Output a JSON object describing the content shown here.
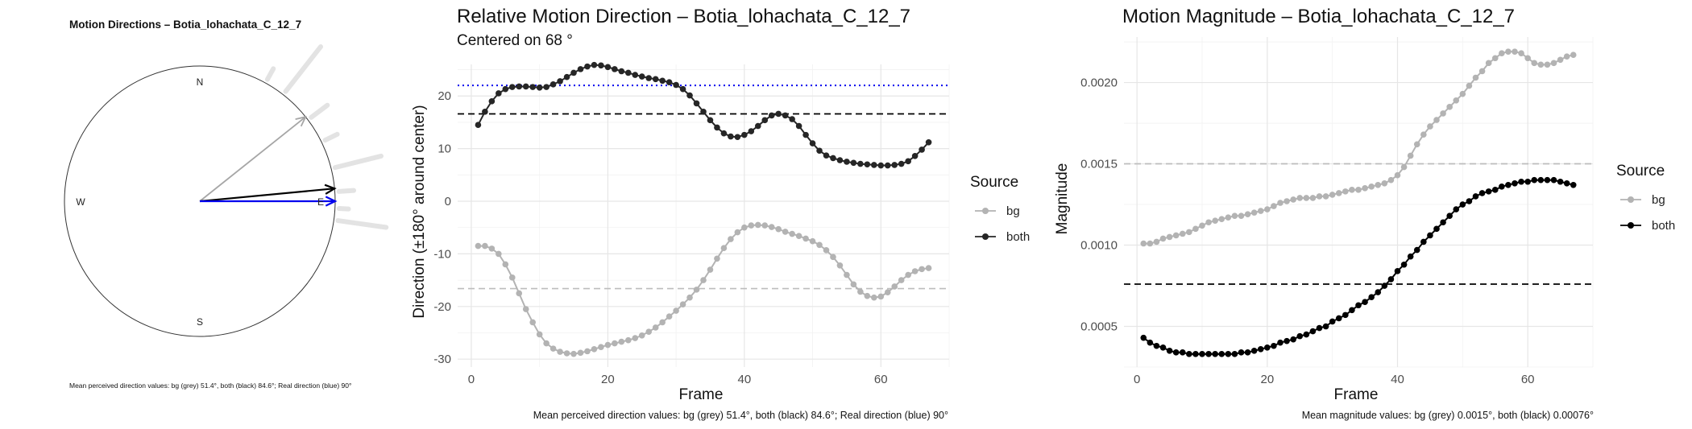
{
  "chart_data": [
    {
      "type": "compass",
      "title": "Motion Directions – Botia_lohachata_C_12_7",
      "directions": {
        "n": "N",
        "s": "S",
        "e": "E",
        "w": "W"
      },
      "caption": "Mean perceived direction values: bg (grey) 51.4°, both (black) 84.6°; Real direction (blue) 90°",
      "arrows": [
        {
          "name": "bg",
          "angle_deg": 51.4,
          "length": 1.0,
          "color": "#a6a6a6"
        },
        {
          "name": "both",
          "angle_deg": 84.6,
          "length": 1.0,
          "color": "#000000"
        },
        {
          "name": "real",
          "angle_deg": 90,
          "length": 1.0,
          "color": "#0000ee"
        }
      ],
      "rays": [
        {
          "angle_deg": 29,
          "r0": 1.03,
          "r1": 1.12
        },
        {
          "angle_deg": 38,
          "r0": 1.03,
          "r1": 1.45
        },
        {
          "angle_deg": 53,
          "r0": 1.03,
          "r1": 1.18
        },
        {
          "angle_deg": 64,
          "r0": 1.03,
          "r1": 1.13
        },
        {
          "angle_deg": 76,
          "r0": 1.03,
          "r1": 1.38
        },
        {
          "angle_deg": 86,
          "r0": 1.03,
          "r1": 1.14
        },
        {
          "angle_deg": 93,
          "r0": 1.03,
          "r1": 1.1
        },
        {
          "angle_deg": 98,
          "r0": 1.03,
          "r1": 1.39
        }
      ]
    },
    {
      "type": "line",
      "title": "Relative Motion Direction – Botia_lohachata_C_12_7",
      "subtitle": "Centered on  68 °",
      "xlabel": "Frame",
      "ylabel": "Direction (±180° around center)",
      "xlim": [
        -2,
        70
      ],
      "ylim": [
        -31.5,
        26
      ],
      "xticks": [
        0,
        20,
        40,
        60
      ],
      "yticks": [
        -30,
        -20,
        -10,
        0,
        10,
        20
      ],
      "legend_title": "Source",
      "legend_position": "right",
      "caption": "Mean perceived direction values: bg (grey) 51.4°, both (black) 84.6°; Real direction (blue) 90°",
      "hlines": [
        {
          "y": 22,
          "color": "#0000ee",
          "style": "dotted"
        },
        {
          "y": 16.6,
          "color": "#000000",
          "style": "dashed"
        },
        {
          "y": -16.6,
          "color": "#bdbdbd",
          "style": "dashed"
        }
      ],
      "series": [
        {
          "name": "bg",
          "color": "#b3b3b3",
          "x": [
            1,
            2,
            3,
            4,
            5,
            6,
            7,
            8,
            9,
            10,
            11,
            12,
            13,
            14,
            15,
            16,
            17,
            18,
            19,
            20,
            21,
            22,
            23,
            24,
            25,
            26,
            27,
            28,
            29,
            30,
            31,
            32,
            33,
            34,
            35,
            36,
            37,
            38,
            39,
            40,
            41,
            42,
            43,
            44,
            45,
            46,
            47,
            48,
            49,
            50,
            51,
            52,
            53,
            54,
            55,
            56,
            57,
            58,
            59,
            60,
            61,
            62,
            63,
            64,
            65,
            66,
            67
          ],
          "y": [
            -8.5,
            -8.5,
            -9.0,
            -10.0,
            -12.0,
            -14.5,
            -17.5,
            -20.5,
            -23.0,
            -25.3,
            -27.0,
            -28.0,
            -28.6,
            -28.9,
            -29.0,
            -28.8,
            -28.5,
            -28.1,
            -27.7,
            -27.3,
            -27.0,
            -26.7,
            -26.4,
            -26.0,
            -25.5,
            -24.8,
            -24.0,
            -23.0,
            -21.9,
            -20.8,
            -19.6,
            -18.3,
            -16.8,
            -15.0,
            -13.0,
            -10.9,
            -8.9,
            -7.2,
            -5.9,
            -5.0,
            -4.6,
            -4.5,
            -4.6,
            -4.9,
            -5.3,
            -5.8,
            -6.2,
            -6.6,
            -7.1,
            -7.6,
            -8.3,
            -9.3,
            -10.6,
            -12.2,
            -14.0,
            -15.8,
            -17.2,
            -18.0,
            -18.3,
            -18.1,
            -17.3,
            -16.2,
            -15.0,
            -14.0,
            -13.3,
            -12.9,
            -12.7
          ]
        },
        {
          "name": "both",
          "color": "#262626",
          "x": [
            1,
            2,
            3,
            4,
            5,
            6,
            7,
            8,
            9,
            10,
            11,
            12,
            13,
            14,
            15,
            16,
            17,
            18,
            19,
            20,
            21,
            22,
            23,
            24,
            25,
            26,
            27,
            28,
            29,
            30,
            31,
            32,
            33,
            34,
            35,
            36,
            37,
            38,
            39,
            40,
            41,
            42,
            43,
            44,
            45,
            46,
            47,
            48,
            49,
            50,
            51,
            52,
            53,
            54,
            55,
            56,
            57,
            58,
            59,
            60,
            61,
            62,
            63,
            64,
            65,
            66,
            67
          ],
          "y": [
            14.5,
            17.0,
            19.0,
            20.5,
            21.3,
            21.7,
            21.8,
            21.8,
            21.7,
            21.6,
            21.7,
            22.2,
            22.8,
            23.6,
            24.4,
            25.1,
            25.6,
            25.9,
            25.8,
            25.5,
            25.1,
            24.7,
            24.4,
            24.0,
            23.7,
            23.4,
            23.2,
            22.9,
            22.6,
            22.1,
            21.3,
            20.1,
            18.6,
            17.0,
            15.4,
            14.0,
            12.9,
            12.3,
            12.2,
            12.6,
            13.3,
            14.3,
            15.4,
            16.3,
            16.6,
            16.3,
            15.6,
            14.3,
            12.6,
            11.0,
            9.6,
            8.7,
            8.2,
            7.8,
            7.5,
            7.3,
            7.1,
            7.0,
            6.9,
            6.8,
            6.8,
            6.9,
            7.1,
            7.6,
            8.6,
            9.8,
            11.2
          ]
        }
      ]
    },
    {
      "type": "line",
      "title": "Motion Magnitude – Botia_lohachata_C_12_7",
      "xlabel": "Frame",
      "ylabel": "Magnitude",
      "xlim": [
        -2,
        70
      ],
      "ylim": [
        0.00025,
        0.00228
      ],
      "xticks": [
        0,
        20,
        40,
        60
      ],
      "yticks": [
        0.0005,
        0.001,
        0.0015,
        0.002
      ],
      "ytick_labels": [
        "0.0005",
        "0.0010",
        "0.0015",
        "0.0020"
      ],
      "legend_title": "Source",
      "legend_position": "right",
      "caption": "Mean magnitude values: bg (grey) 0.0015°, both (black) 0.00076°",
      "hlines": [
        {
          "y": 0.0015,
          "color": "#bdbdbd",
          "style": "dashed"
        },
        {
          "y": 0.00076,
          "color": "#000000",
          "style": "dashed"
        }
      ],
      "series": [
        {
          "name": "bg",
          "color": "#b3b3b3",
          "x": [
            1,
            2,
            3,
            4,
            5,
            6,
            7,
            8,
            9,
            10,
            11,
            12,
            13,
            14,
            15,
            16,
            17,
            18,
            19,
            20,
            21,
            22,
            23,
            24,
            25,
            26,
            27,
            28,
            29,
            30,
            31,
            32,
            33,
            34,
            35,
            36,
            37,
            38,
            39,
            40,
            41,
            42,
            43,
            44,
            45,
            46,
            47,
            48,
            49,
            50,
            51,
            52,
            53,
            54,
            55,
            56,
            57,
            58,
            59,
            60,
            61,
            62,
            63,
            64,
            65,
            66,
            67
          ],
          "y": [
            0.00101,
            0.00101,
            0.00102,
            0.00104,
            0.00105,
            0.00106,
            0.00107,
            0.00108,
            0.0011,
            0.00112,
            0.00114,
            0.00115,
            0.00116,
            0.00117,
            0.00118,
            0.00118,
            0.00119,
            0.0012,
            0.00121,
            0.00122,
            0.00124,
            0.00126,
            0.00127,
            0.00128,
            0.00129,
            0.00129,
            0.00129,
            0.0013,
            0.0013,
            0.00131,
            0.00132,
            0.00133,
            0.00134,
            0.00134,
            0.00135,
            0.00136,
            0.00137,
            0.00138,
            0.0014,
            0.00143,
            0.00148,
            0.00155,
            0.00162,
            0.00168,
            0.00173,
            0.00177,
            0.00181,
            0.00185,
            0.00189,
            0.00193,
            0.00198,
            0.00203,
            0.00207,
            0.00212,
            0.00215,
            0.00218,
            0.00219,
            0.00219,
            0.00218,
            0.00215,
            0.00212,
            0.00211,
            0.00211,
            0.00212,
            0.00214,
            0.00216,
            0.00217
          ]
        },
        {
          "name": "both",
          "color": "#000000",
          "x": [
            1,
            2,
            3,
            4,
            5,
            6,
            7,
            8,
            9,
            10,
            11,
            12,
            13,
            14,
            15,
            16,
            17,
            18,
            19,
            20,
            21,
            22,
            23,
            24,
            25,
            26,
            27,
            28,
            29,
            30,
            31,
            32,
            33,
            34,
            35,
            36,
            37,
            38,
            39,
            40,
            41,
            42,
            43,
            44,
            45,
            46,
            47,
            48,
            49,
            50,
            51,
            52,
            53,
            54,
            55,
            56,
            57,
            58,
            59,
            60,
            61,
            62,
            63,
            64,
            65,
            66,
            67
          ],
          "y": [
            0.00043,
            0.0004,
            0.00038,
            0.00037,
            0.00035,
            0.00034,
            0.00034,
            0.00033,
            0.00033,
            0.00033,
            0.00033,
            0.00033,
            0.00033,
            0.00033,
            0.00033,
            0.00034,
            0.00034,
            0.00035,
            0.00036,
            0.00037,
            0.00038,
            0.0004,
            0.00041,
            0.00042,
            0.00044,
            0.00045,
            0.00047,
            0.00049,
            0.0005,
            0.00053,
            0.00055,
            0.00057,
            0.0006,
            0.00063,
            0.00065,
            0.00068,
            0.00071,
            0.00075,
            0.00079,
            0.00084,
            0.00088,
            0.00093,
            0.00097,
            0.00102,
            0.00106,
            0.0011,
            0.00114,
            0.00118,
            0.00122,
            0.00125,
            0.00127,
            0.0013,
            0.00132,
            0.00133,
            0.00134,
            0.00136,
            0.00137,
            0.00138,
            0.00139,
            0.00139,
            0.0014,
            0.0014,
            0.0014,
            0.0014,
            0.00139,
            0.00138,
            0.00137
          ]
        }
      ]
    }
  ]
}
